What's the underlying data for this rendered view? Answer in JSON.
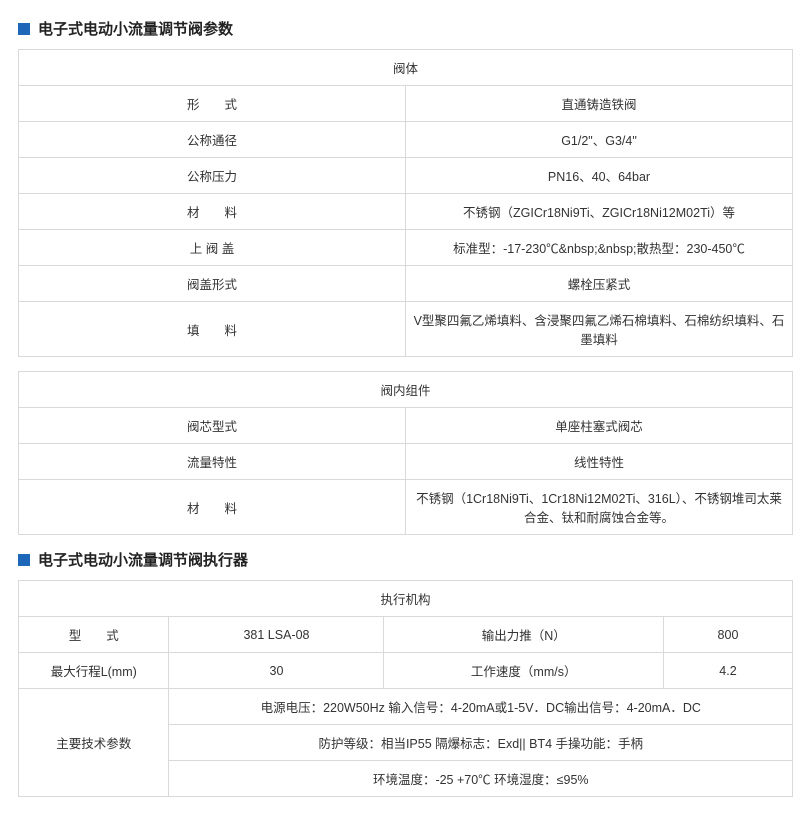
{
  "section1": {
    "title": "电子式电动小流量调节阀参数",
    "table1": {
      "header": "阀体",
      "rows": [
        {
          "label": "形　　式",
          "value": "直通铸造铁阀"
        },
        {
          "label": "公称通径",
          "value": "G1/2\"、G3/4\""
        },
        {
          "label": "公称压力",
          "value": "PN16、40、64bar"
        },
        {
          "label": "材　　料",
          "value": "不锈钢（ZGICr18Ni9Ti、ZGICr18Ni12M02Ti）等"
        },
        {
          "label": "上 阀 盖",
          "value": "标准型：-17-230℃&nbsp;&nbsp;散热型：230-450℃"
        },
        {
          "label": "阀盖形式",
          "value": "螺栓压紧式"
        },
        {
          "label": "填　　料",
          "value": "V型聚四氟乙烯填料、含浸聚四氟乙烯石棉填料、石棉纺织填料、石墨填料"
        }
      ]
    },
    "table2": {
      "header": "阀内组件",
      "rows": [
        {
          "label": "阀芯型式",
          "value": "单座柱塞式阀芯"
        },
        {
          "label": "流量特性",
          "value": "线性特性"
        },
        {
          "label": "材　　料",
          "value": "不锈钢（1Cr18Ni9Ti、1Cr18Ni12M02Ti、316L）、不锈钢堆司太莱合金、钛和耐腐蚀合金等。"
        }
      ]
    }
  },
  "section2": {
    "title": "电子式电动小流量调节阀执行器",
    "table3": {
      "header": "执行机构",
      "row1": {
        "c1": "型　　式",
        "c2": "381 LSA-08",
        "c3": "输出力推（N）",
        "c4": "800"
      },
      "row2": {
        "c1": "最大行程L(mm)",
        "c2": "30",
        "c3": "工作速度（mm/s）",
        "c4": "4.2"
      },
      "rowspanLabel": "主要技术参数",
      "line1": "电源电压：220W50Hz 输入信号：4-20mA或1-5V．DC输出信号：4-20mA．DC",
      "line2": "防护等级：相当IP55 隔爆标志：Exd|| BT4 手操功能：手柄",
      "line3": "环境温度：-25 +70℃ 环境湿度：≤95%"
    }
  },
  "accentColor": "#1e66b8"
}
